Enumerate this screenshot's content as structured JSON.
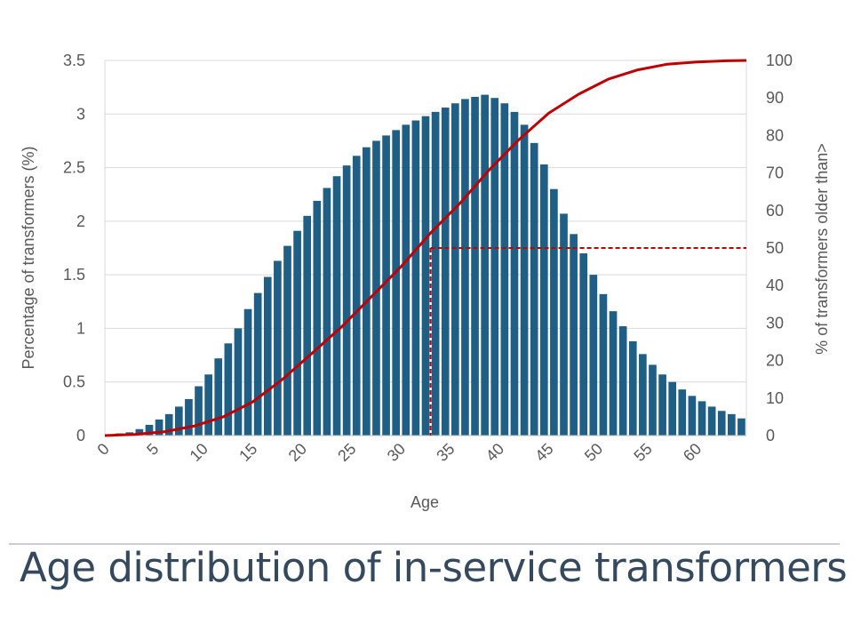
{
  "caption": "Age distribution of in-service transformers",
  "chart_data": {
    "type": "bar",
    "xlabel": "Age",
    "ylabel": "Percentage of transformers (%)",
    "y2label": "% of transformers older than>",
    "xlim": [
      0,
      65
    ],
    "ylim": [
      0,
      3.5
    ],
    "y2lim": [
      0,
      100
    ],
    "x_ticks": [
      "0",
      "5",
      "10",
      "15",
      "20",
      "25",
      "30",
      "35",
      "40",
      "45",
      "50",
      "55",
      "60"
    ],
    "y_ticks": [
      "0",
      "0.5",
      "1",
      "1.5",
      "2",
      "2.5",
      "3",
      "3.5"
    ],
    "y2_ticks": [
      "0",
      "10",
      "20",
      "30",
      "40",
      "50",
      "60",
      "70",
      "80",
      "90",
      "100"
    ],
    "grid": true,
    "bars": {
      "x": [
        1,
        2,
        3,
        4,
        5,
        6,
        7,
        8,
        9,
        10,
        11,
        12,
        13,
        14,
        15,
        16,
        17,
        18,
        19,
        20,
        21,
        22,
        23,
        24,
        25,
        26,
        27,
        28,
        29,
        30,
        31,
        32,
        33,
        34,
        35,
        36,
        37,
        38,
        39,
        40,
        41,
        42,
        43,
        44,
        45,
        46,
        47,
        48,
        49,
        50,
        51,
        52,
        53,
        54,
        55,
        56,
        57,
        58,
        59,
        60,
        61,
        62,
        63,
        64,
        65
      ],
      "values": [
        0.01,
        0.02,
        0.03,
        0.06,
        0.1,
        0.15,
        0.2,
        0.27,
        0.34,
        0.46,
        0.57,
        0.72,
        0.86,
        1.0,
        1.18,
        1.33,
        1.48,
        1.63,
        1.77,
        1.91,
        2.05,
        2.19,
        2.31,
        2.42,
        2.52,
        2.61,
        2.69,
        2.75,
        2.8,
        2.85,
        2.9,
        2.94,
        2.98,
        3.02,
        3.06,
        3.1,
        3.14,
        3.16,
        3.18,
        3.15,
        3.1,
        3.02,
        2.9,
        2.73,
        2.53,
        2.3,
        2.07,
        1.88,
        1.7,
        1.5,
        1.32,
        1.16,
        1.02,
        0.88,
        0.76,
        0.66,
        0.57,
        0.5,
        0.43,
        0.37,
        0.32,
        0.27,
        0.23,
        0.2,
        0.16
      ]
    },
    "cumulative_line": {
      "axis": "right",
      "x": [
        0,
        3,
        6,
        9,
        12,
        15,
        18,
        21,
        24,
        27,
        30,
        33,
        36,
        39,
        42,
        45,
        48,
        51,
        54,
        57,
        60,
        63,
        65
      ],
      "values": [
        0,
        0.3,
        1,
        2.5,
        5,
        9,
        15,
        22,
        29,
        37,
        45,
        54,
        62,
        71,
        79,
        86,
        91,
        95,
        97.5,
        99,
        99.6,
        99.9,
        100
      ]
    },
    "median_marker": {
      "x": 33,
      "y2": 50
    }
  }
}
